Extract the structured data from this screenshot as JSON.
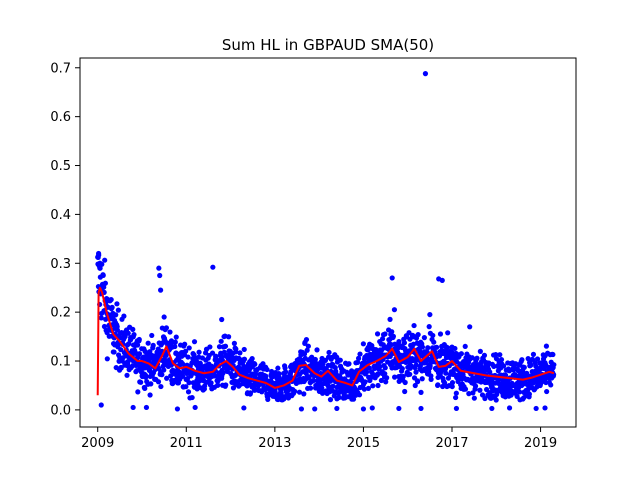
{
  "chart_data": {
    "type": "scatter",
    "title": "Sum HL in GBPAUD SMA(50)",
    "xlabel": "",
    "ylabel": "",
    "xlim": [
      2008.6,
      2019.8
    ],
    "ylim": [
      -0.035,
      0.72
    ],
    "x_ticks": [
      2009,
      2011,
      2013,
      2015,
      2017,
      2019
    ],
    "x_tick_labels": [
      "2009",
      "2011",
      "2013",
      "2015",
      "2017",
      "2019"
    ],
    "y_ticks": [
      0.0,
      0.1,
      0.2,
      0.3,
      0.4,
      0.5,
      0.6,
      0.7
    ],
    "y_tick_labels": [
      "0.0",
      "0.1",
      "0.2",
      "0.3",
      "0.4",
      "0.5",
      "0.6",
      "0.7"
    ],
    "grid": false,
    "series": [
      {
        "kind": "scatter",
        "color": "#0000ff",
        "trend": {
          "x": [
            2009.0,
            2009.1,
            2009.2,
            2009.35,
            2009.5,
            2009.7,
            2009.9,
            2010.0,
            2010.15,
            2010.3,
            2010.45,
            2010.55,
            2010.7,
            2010.85,
            2011.0,
            2011.2,
            2011.4,
            2011.6,
            2011.75,
            2011.9,
            2012.05,
            2012.2,
            2012.4,
            2012.6,
            2012.8,
            2013.0,
            2013.2,
            2013.4,
            2013.55,
            2013.7,
            2013.9,
            2014.05,
            2014.2,
            2014.4,
            2014.6,
            2014.75,
            2014.9,
            2015.1,
            2015.3,
            2015.5,
            2015.65,
            2015.8,
            2016.0,
            2016.15,
            2016.3,
            2016.45,
            2016.55,
            2016.7,
            2016.85,
            2017.0,
            2017.2,
            2017.5,
            2017.8,
            2018.0,
            2018.3,
            2018.6,
            2018.8,
            2019.0,
            2019.2,
            2019.3
          ],
          "y": [
            0.27,
            0.25,
            0.2,
            0.16,
            0.14,
            0.12,
            0.1,
            0.1,
            0.095,
            0.09,
            0.11,
            0.125,
            0.095,
            0.085,
            0.085,
            0.08,
            0.075,
            0.078,
            0.09,
            0.1,
            0.09,
            0.075,
            0.065,
            0.06,
            0.055,
            0.045,
            0.05,
            0.06,
            0.085,
            0.09,
            0.075,
            0.07,
            0.08,
            0.06,
            0.055,
            0.05,
            0.075,
            0.09,
            0.1,
            0.11,
            0.125,
            0.1,
            0.105,
            0.12,
            0.1,
            0.11,
            0.12,
            0.09,
            0.09,
            0.1,
            0.08,
            0.075,
            0.07,
            0.068,
            0.065,
            0.062,
            0.065,
            0.07,
            0.078,
            0.075
          ],
          "spread": 0.025
        },
        "outliers": [
          {
            "x": 2009.02,
            "y": 0.32
          },
          {
            "x": 2009.05,
            "y": 0.3
          },
          {
            "x": 2009.08,
            "y": 0.01
          },
          {
            "x": 2010.38,
            "y": 0.29
          },
          {
            "x": 2010.4,
            "y": 0.275
          },
          {
            "x": 2010.42,
            "y": 0.245
          },
          {
            "x": 2011.6,
            "y": 0.292
          },
          {
            "x": 2015.65,
            "y": 0.27
          },
          {
            "x": 2016.4,
            "y": 0.688
          },
          {
            "x": 2016.7,
            "y": 0.268
          },
          {
            "x": 2016.78,
            "y": 0.265
          },
          {
            "x": 2015.7,
            "y": 0.205
          },
          {
            "x": 2016.5,
            "y": 0.195
          },
          {
            "x": 2011.8,
            "y": 0.185
          },
          {
            "x": 2010.5,
            "y": 0.19
          },
          {
            "x": 2017.4,
            "y": 0.17
          },
          {
            "x": 2009.8,
            "y": 0.005
          },
          {
            "x": 2010.1,
            "y": 0.005
          },
          {
            "x": 2010.8,
            "y": 0.002
          },
          {
            "x": 2011.2,
            "y": 0.005
          },
          {
            "x": 2012.3,
            "y": 0.004
          },
          {
            "x": 2013.6,
            "y": 0.002
          },
          {
            "x": 2013.9,
            "y": 0.002
          },
          {
            "x": 2014.4,
            "y": 0.003
          },
          {
            "x": 2015.0,
            "y": 0.002
          },
          {
            "x": 2015.2,
            "y": 0.004
          },
          {
            "x": 2015.8,
            "y": 0.003
          },
          {
            "x": 2016.3,
            "y": 0.003
          },
          {
            "x": 2017.1,
            "y": 0.003
          },
          {
            "x": 2017.9,
            "y": 0.003
          },
          {
            "x": 2018.3,
            "y": 0.004
          },
          {
            "x": 2018.9,
            "y": 0.003
          },
          {
            "x": 2019.1,
            "y": 0.004
          }
        ]
      },
      {
        "kind": "line",
        "color": "#ff0000",
        "x": [
          2009.0,
          2009.02,
          2009.05,
          2009.1,
          2009.2,
          2009.35,
          2009.5,
          2009.7,
          2009.9,
          2010.0,
          2010.15,
          2010.3,
          2010.45,
          2010.55,
          2010.7,
          2010.85,
          2011.0,
          2011.2,
          2011.4,
          2011.6,
          2011.75,
          2011.9,
          2012.05,
          2012.2,
          2012.4,
          2012.6,
          2012.8,
          2013.0,
          2013.2,
          2013.4,
          2013.55,
          2013.7,
          2013.9,
          2014.05,
          2014.2,
          2014.4,
          2014.6,
          2014.75,
          2014.9,
          2015.1,
          2015.3,
          2015.5,
          2015.65,
          2015.8,
          2016.0,
          2016.15,
          2016.3,
          2016.45,
          2016.55,
          2016.7,
          2016.85,
          2017.0,
          2017.2,
          2017.5,
          2017.8,
          2018.0,
          2018.3,
          2018.6,
          2018.8,
          2019.0,
          2019.2,
          2019.3
        ],
        "y": [
          0.03,
          0.24,
          0.25,
          0.24,
          0.2,
          0.155,
          0.14,
          0.115,
          0.1,
          0.1,
          0.095,
          0.085,
          0.11,
          0.13,
          0.095,
          0.085,
          0.088,
          0.08,
          0.075,
          0.078,
          0.092,
          0.1,
          0.088,
          0.072,
          0.065,
          0.06,
          0.055,
          0.045,
          0.05,
          0.06,
          0.09,
          0.092,
          0.075,
          0.068,
          0.08,
          0.06,
          0.055,
          0.05,
          0.078,
          0.092,
          0.1,
          0.11,
          0.125,
          0.098,
          0.108,
          0.125,
          0.1,
          0.112,
          0.12,
          0.088,
          0.09,
          0.1,
          0.08,
          0.075,
          0.07,
          0.068,
          0.065,
          0.062,
          0.066,
          0.072,
          0.078,
          0.075
        ]
      }
    ]
  }
}
